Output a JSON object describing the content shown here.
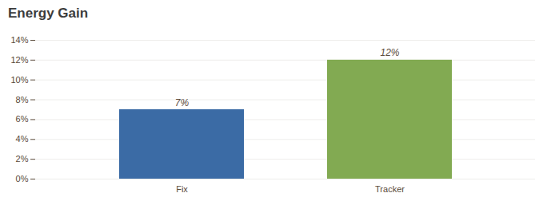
{
  "chart_data": {
    "type": "bar",
    "title": "Energy Gain",
    "categories": [
      "Fix",
      "Tracker"
    ],
    "values": [
      7,
      12
    ],
    "value_labels": [
      "7%",
      "12%"
    ],
    "data_labels": true,
    "colors": [
      "#3B6BA5",
      "#82AA52"
    ],
    "ylim": [
      0,
      14
    ],
    "yticks": [
      {
        "value": 0,
        "label": "0%"
      },
      {
        "value": 2,
        "label": "2%"
      },
      {
        "value": 4,
        "label": "4%"
      },
      {
        "value": 6,
        "label": "6%"
      },
      {
        "value": 8,
        "label": "8%"
      },
      {
        "value": 10,
        "label": "10%"
      },
      {
        "value": 12,
        "label": "12%"
      },
      {
        "value": 14,
        "label": "14%"
      }
    ],
    "grid": true
  }
}
